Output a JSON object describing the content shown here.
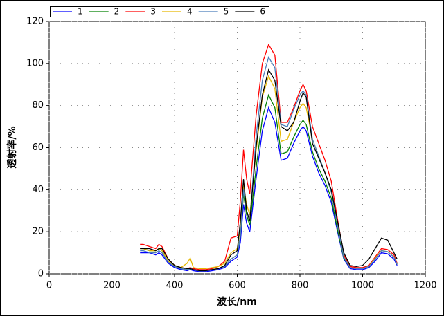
{
  "chart_data": {
    "type": "line",
    "xlabel": "波长/nm",
    "ylabel": "透射率/%",
    "x": [
      290,
      300,
      320,
      340,
      350,
      360,
      380,
      400,
      420,
      440,
      450,
      460,
      480,
      500,
      520,
      540,
      560,
      580,
      600,
      610,
      620,
      630,
      640,
      660,
      680,
      700,
      720,
      740,
      760,
      780,
      800,
      810,
      820,
      840,
      860,
      880,
      900,
      920,
      940,
      960,
      980,
      1000,
      1020,
      1040,
      1060,
      1080,
      1100,
      1110
    ],
    "series": [
      {
        "name": "1",
        "color": "#0000ff",
        "values": [
          10,
          10,
          10,
          9,
          10,
          9,
          5,
          3,
          2,
          1.5,
          2,
          1.5,
          1,
          1,
          1.5,
          2,
          3,
          6,
          8,
          15,
          33,
          24,
          20,
          45,
          68,
          79,
          72,
          54,
          55,
          62,
          68,
          70,
          68,
          56,
          48,
          42,
          34,
          20,
          7,
          2.5,
          2,
          2,
          3,
          6,
          10,
          9.5,
          7,
          4
        ]
      },
      {
        "name": "2",
        "color": "#008000",
        "values": [
          12,
          12,
          11,
          11,
          12,
          11,
          6,
          3.5,
          2.5,
          2,
          2.5,
          2,
          1.5,
          1.5,
          2,
          2.5,
          3.5,
          7,
          9,
          18,
          38,
          28,
          23,
          50,
          74,
          85,
          79,
          57,
          58,
          65,
          71,
          73,
          71,
          58,
          50,
          44,
          36,
          21,
          7.5,
          3,
          2.5,
          2.5,
          3.5,
          7,
          11,
          10.5,
          8,
          4.5
        ]
      },
      {
        "name": "3",
        "color": "#ff0000",
        "values": [
          14,
          14,
          13,
          12,
          14,
          13,
          7,
          4,
          3,
          2.5,
          3,
          2.5,
          2,
          2,
          2.5,
          3.5,
          6,
          17,
          18,
          35,
          59,
          45,
          38,
          75,
          100,
          109,
          104,
          72,
          72,
          79,
          87,
          90,
          87,
          70,
          62,
          54,
          44,
          26,
          9,
          3.5,
          3,
          3,
          4,
          8,
          12,
          11.5,
          9,
          5
        ]
      },
      {
        "name": "4",
        "color": "#e6b800",
        "values": [
          12,
          12,
          11,
          11,
          12,
          11,
          6,
          4,
          3,
          5,
          7.5,
          3,
          2.5,
          2.5,
          3,
          3.5,
          5,
          10,
          12,
          22,
          42,
          33,
          28,
          58,
          84,
          94,
          88,
          63,
          64,
          72,
          79,
          81,
          79,
          64,
          56,
          48,
          39,
          23,
          8,
          3,
          2.5,
          2.5,
          3.5,
          7.5,
          11,
          10.5,
          8,
          4.5
        ]
      },
      {
        "name": "5",
        "color": "#4a7ebb",
        "values": [
          11,
          11,
          10,
          10,
          11,
          10,
          5.5,
          3.5,
          2.5,
          2,
          2.5,
          2,
          1.5,
          1.5,
          2,
          2.5,
          3.5,
          7,
          9,
          18,
          40,
          30,
          25,
          65,
          92,
          103,
          98,
          71,
          70,
          78,
          85,
          87,
          85,
          64,
          56,
          48,
          39,
          23,
          8,
          3,
          2.5,
          2.5,
          3.5,
          7,
          11,
          10.5,
          8,
          4.5
        ]
      },
      {
        "name": "6",
        "color": "#000000",
        "values": [
          12,
          12,
          12,
          11,
          12,
          12,
          7,
          4,
          3,
          2.5,
          2.5,
          2,
          1.5,
          1.5,
          2,
          2.5,
          4,
          9,
          11,
          25,
          45,
          30,
          25,
          60,
          85,
          97,
          92,
          70,
          68,
          72,
          82,
          86,
          84,
          62,
          55,
          48,
          40,
          25,
          10,
          4,
          3.5,
          4,
          7,
          12,
          17,
          16,
          10,
          7
        ]
      }
    ],
    "xlim": [
      0,
      1200
    ],
    "xticks": [
      0,
      200,
      400,
      600,
      800,
      1000,
      1200
    ],
    "ylim": [
      0,
      120
    ],
    "yticks": [
      0,
      20,
      40,
      60,
      80,
      100,
      120
    ],
    "grid": true,
    "legend": "top"
  }
}
